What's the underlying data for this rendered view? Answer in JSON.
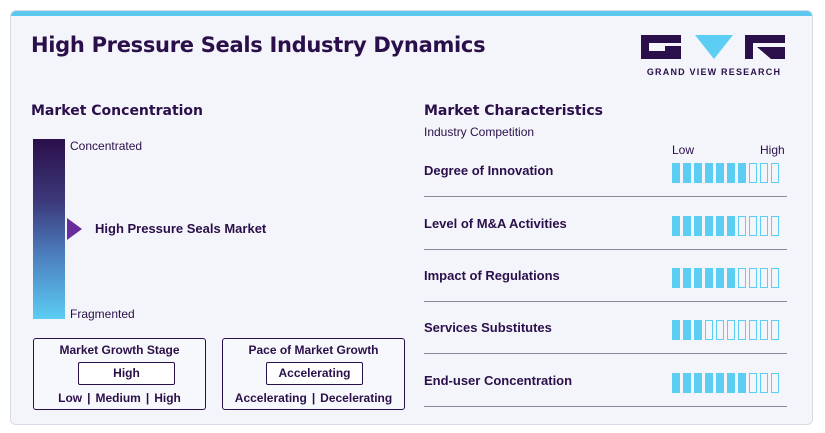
{
  "title": "High Pressure Seals Industry Dynamics",
  "logo": {
    "text": "GRAND VIEW RESEARCH"
  },
  "colors": {
    "accent": "#5ccdf3",
    "brand": "#2b0f4a",
    "marker": "#6a2c9c"
  },
  "concentration": {
    "heading": "Market Concentration",
    "top_label": "Concentrated",
    "bottom_label": "Fragmented",
    "marker_label": "High Pressure Seals Market",
    "marker_level": 0.5
  },
  "growth_stage": {
    "title": "Market Growth Stage",
    "value": "High",
    "options": [
      "Low",
      "Medium",
      "High"
    ]
  },
  "growth_pace": {
    "title": "Pace of Market Growth",
    "value": "Accelerating",
    "options": [
      "Accelerating",
      "Decelerating"
    ]
  },
  "characteristics": {
    "heading": "Market Characteristics",
    "subheading": "Industry Competition",
    "scale_low": "Low",
    "scale_high": "High",
    "total_segments": 10,
    "rows": [
      {
        "label": "Degree of Innovation",
        "level": 7
      },
      {
        "label": "Level of M&A Activities",
        "level": 6
      },
      {
        "label": "Impact of Regulations",
        "level": 6
      },
      {
        "label": "Services Substitutes",
        "level": 3
      },
      {
        "label": "End-user Concentration",
        "level": 7
      }
    ]
  }
}
